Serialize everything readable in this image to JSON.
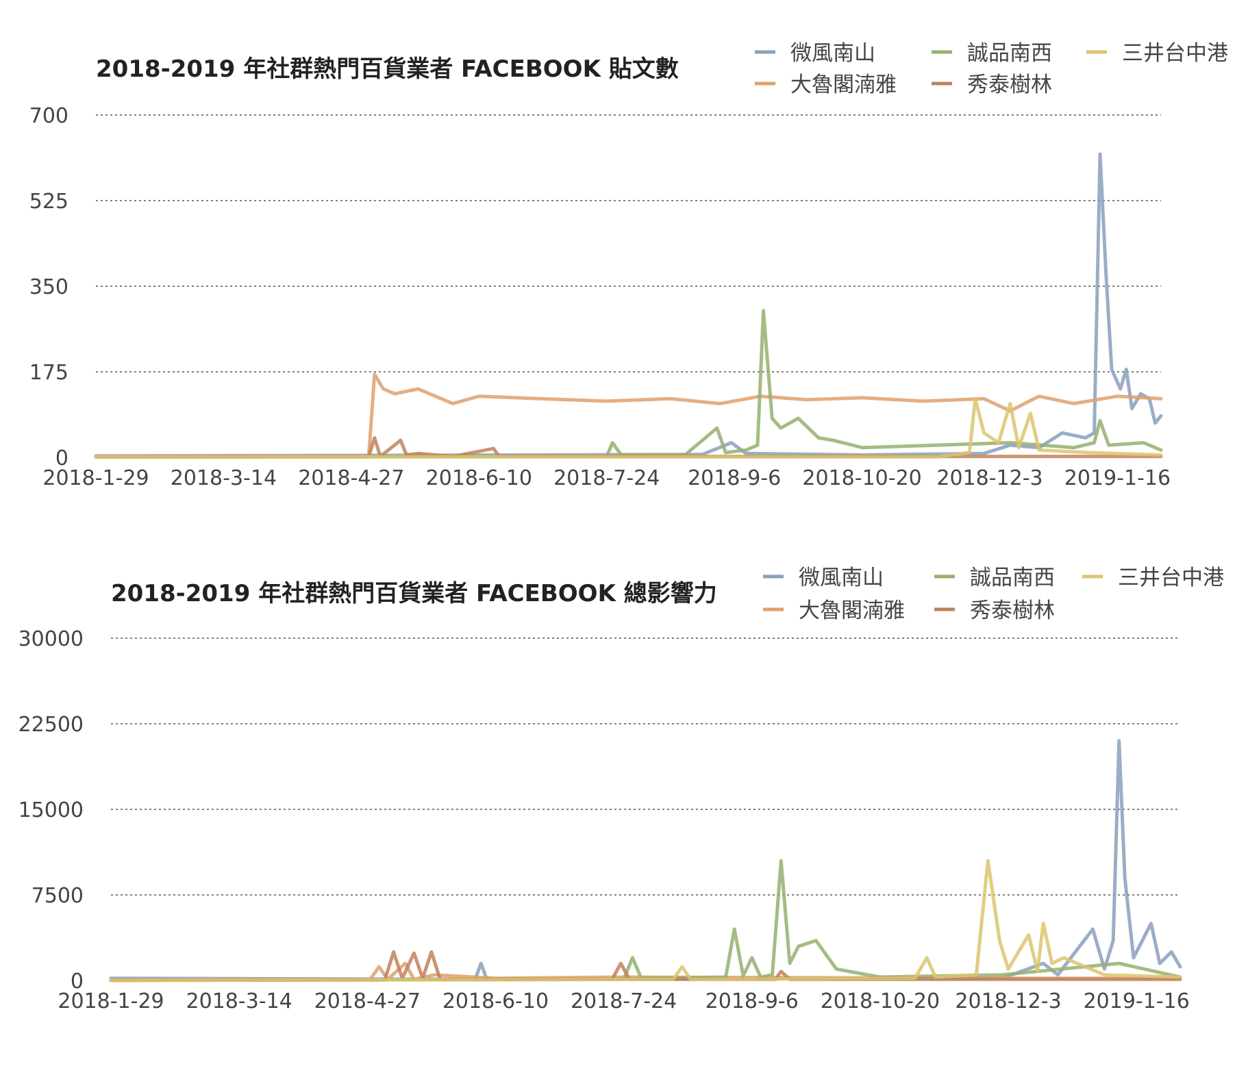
{
  "colors": {
    "wfns": "#8a9fbd",
    "dlg": "#dfa06d",
    "esns": "#94b06e",
    "st": "#c0825c",
    "msth": "#dcc46e"
  },
  "chart_data": [
    {
      "type": "line",
      "title": "2018-2019 年社群熱門百貨業者 FACEBOOK 貼文數",
      "xlabel": "",
      "ylabel": "",
      "ylim": [
        0,
        700
      ],
      "yticks": [
        "0",
        "175",
        "350",
        "525",
        "700"
      ],
      "xticks": [
        "2018-1-29",
        "2018-3-14",
        "2018-4-27",
        "2018-6-10",
        "2018-7-24",
        "2018-9-6",
        "2018-10-20",
        "2018-12-3",
        "2019-1-16"
      ],
      "x_range": [
        "2018-1-29",
        "2019-1-31"
      ],
      "grid": true,
      "legend": "top-right",
      "series": [
        {
          "name": "微風南山",
          "color_key": "wfns",
          "points": [
            [
              "2018-1-29",
              3
            ],
            [
              "2018-5-3",
              4
            ],
            [
              "2018-8-26",
              6
            ],
            [
              "2018-9-5",
              30
            ],
            [
              "2018-9-10",
              8
            ],
            [
              "2018-10-20",
              5
            ],
            [
              "2018-12-1",
              8
            ],
            [
              "2018-12-10",
              25
            ],
            [
              "2018-12-20",
              20
            ],
            [
              "2018-12-28",
              50
            ],
            [
              "2019-1-5",
              40
            ],
            [
              "2019-1-8",
              50
            ],
            [
              "2019-1-10",
              620
            ],
            [
              "2019-1-12",
              380
            ],
            [
              "2019-1-14",
              180
            ],
            [
              "2019-1-17",
              140
            ],
            [
              "2019-1-19",
              180
            ],
            [
              "2019-1-21",
              100
            ],
            [
              "2019-1-24",
              130
            ],
            [
              "2019-1-27",
              120
            ],
            [
              "2019-1-29",
              70
            ],
            [
              "2019-1-31",
              85
            ]
          ]
        },
        {
          "name": "大魯閣湳雅",
          "color_key": "dlg",
          "points": [
            [
              "2018-1-29",
              2
            ],
            [
              "2018-5-3",
              2
            ],
            [
              "2018-5-5",
              170
            ],
            [
              "2018-5-8",
              140
            ],
            [
              "2018-5-12",
              130
            ],
            [
              "2018-5-20",
              140
            ],
            [
              "2018-6-1",
              110
            ],
            [
              "2018-6-10",
              125
            ],
            [
              "2018-7-1",
              120
            ],
            [
              "2018-7-24",
              115
            ],
            [
              "2018-8-15",
              120
            ],
            [
              "2018-9-1",
              110
            ],
            [
              "2018-9-15",
              125
            ],
            [
              "2018-10-1",
              118
            ],
            [
              "2018-10-20",
              122
            ],
            [
              "2018-11-10",
              115
            ],
            [
              "2018-12-1",
              120
            ],
            [
              "2018-12-10",
              95
            ],
            [
              "2018-12-20",
              125
            ],
            [
              "2019-1-1",
              110
            ],
            [
              "2019-1-16",
              125
            ],
            [
              "2019-1-31",
              120
            ]
          ]
        },
        {
          "name": "誠品南西",
          "color_key": "esns",
          "points": [
            [
              "2018-1-29",
              1
            ],
            [
              "2018-7-24",
              2
            ],
            [
              "2018-7-26",
              30
            ],
            [
              "2018-7-29",
              5
            ],
            [
              "2018-8-20",
              5
            ],
            [
              "2018-8-31",
              60
            ],
            [
              "2018-9-3",
              10
            ],
            [
              "2018-9-10",
              15
            ],
            [
              "2018-9-14",
              25
            ],
            [
              "2018-9-16",
              300
            ],
            [
              "2018-9-19",
              80
            ],
            [
              "2018-9-22",
              60
            ],
            [
              "2018-9-28",
              80
            ],
            [
              "2018-10-5",
              40
            ],
            [
              "2018-10-10",
              35
            ],
            [
              "2018-10-20",
              20
            ],
            [
              "2018-11-15",
              25
            ],
            [
              "2018-12-10",
              30
            ],
            [
              "2019-1-1",
              20
            ],
            [
              "2019-1-8",
              30
            ],
            [
              "2019-1-10",
              75
            ],
            [
              "2019-1-13",
              25
            ],
            [
              "2019-1-25",
              30
            ],
            [
              "2019-1-31",
              15
            ]
          ]
        },
        {
          "name": "秀泰樹林",
          "color_key": "st",
          "points": [
            [
              "2018-1-29",
              1
            ],
            [
              "2018-5-3",
              1
            ],
            [
              "2018-5-5",
              40
            ],
            [
              "2018-5-7",
              2
            ],
            [
              "2018-5-14",
              35
            ],
            [
              "2018-5-16",
              5
            ],
            [
              "2018-5-20",
              8
            ],
            [
              "2018-6-1",
              2
            ],
            [
              "2018-6-15",
              18
            ],
            [
              "2018-6-17",
              2
            ],
            [
              "2018-12-1",
              2
            ],
            [
              "2019-1-31",
              2
            ]
          ]
        },
        {
          "name": "三井台中港",
          "color_key": "msth",
          "points": [
            [
              "2018-1-29",
              1
            ],
            [
              "2018-11-15",
              1
            ],
            [
              "2018-11-26",
              10
            ],
            [
              "2018-11-28",
              120
            ],
            [
              "2018-12-1",
              50
            ],
            [
              "2018-12-6",
              30
            ],
            [
              "2018-12-10",
              110
            ],
            [
              "2018-12-13",
              20
            ],
            [
              "2018-12-17",
              90
            ],
            [
              "2018-12-20",
              15
            ],
            [
              "2019-1-5",
              10
            ],
            [
              "2019-1-31",
              5
            ]
          ]
        }
      ]
    },
    {
      "type": "line",
      "title": "2018-2019 年社群熱門百貨業者 FACEBOOK 總影響力",
      "xlabel": "",
      "ylabel": "",
      "ylim": [
        0,
        30000
      ],
      "yticks": [
        "0",
        "7500",
        "15000",
        "22500",
        "30000"
      ],
      "xticks": [
        "2018-1-29",
        "2018-3-14",
        "2018-4-27",
        "2018-6-10",
        "2018-7-24",
        "2018-9-6",
        "2018-10-20",
        "2018-12-3",
        "2019-1-16"
      ],
      "x_range": [
        "2018-1-29",
        "2019-1-31"
      ],
      "grid": true,
      "legend": "top-right",
      "series": [
        {
          "name": "微風南山",
          "color_key": "wfns",
          "points": [
            [
              "2018-1-29",
              200
            ],
            [
              "2018-6-3",
              100
            ],
            [
              "2018-6-5",
              1500
            ],
            [
              "2018-6-7",
              100
            ],
            [
              "2018-12-1",
              200
            ],
            [
              "2018-12-15",
              1500
            ],
            [
              "2018-12-20",
              500
            ],
            [
              "2019-1-1",
              4500
            ],
            [
              "2019-1-5",
              1000
            ],
            [
              "2019-1-8",
              3500
            ],
            [
              "2019-1-10",
              21000
            ],
            [
              "2019-1-12",
              9000
            ],
            [
              "2019-1-15",
              2000
            ],
            [
              "2019-1-18",
              3500
            ],
            [
              "2019-1-21",
              5000
            ],
            [
              "2019-1-24",
              1500
            ],
            [
              "2019-1-28",
              2500
            ],
            [
              "2019-1-31",
              1200
            ]
          ]
        },
        {
          "name": "大魯閣湳雅",
          "color_key": "dlg",
          "points": [
            [
              "2018-1-29",
              50
            ],
            [
              "2018-4-28",
              100
            ],
            [
              "2018-5-1",
              1200
            ],
            [
              "2018-5-4",
              100
            ],
            [
              "2018-5-10",
              1500
            ],
            [
              "2018-5-13",
              100
            ],
            [
              "2018-5-20",
              500
            ],
            [
              "2018-6-10",
              200
            ],
            [
              "2018-7-24",
              300
            ],
            [
              "2018-12-1",
              200
            ],
            [
              "2019-1-31",
              200
            ]
          ]
        },
        {
          "name": "誠品南西",
          "color_key": "esns",
          "points": [
            [
              "2018-1-29",
              20
            ],
            [
              "2018-7-24",
              100
            ],
            [
              "2018-7-27",
              2000
            ],
            [
              "2018-7-30",
              200
            ],
            [
              "2018-8-28",
              300
            ],
            [
              "2018-8-31",
              4500
            ],
            [
              "2018-9-3",
              400
            ],
            [
              "2018-9-6",
              2000
            ],
            [
              "2018-9-9",
              300
            ],
            [
              "2018-9-13",
              500
            ],
            [
              "2018-9-16",
              10500
            ],
            [
              "2018-9-19",
              1500
            ],
            [
              "2018-9-22",
              3000
            ],
            [
              "2018-9-28",
              3500
            ],
            [
              "2018-10-5",
              1000
            ],
            [
              "2018-10-20",
              300
            ],
            [
              "2018-12-1",
              500
            ],
            [
              "2019-1-10",
              1500
            ],
            [
              "2019-1-31",
              300
            ]
          ]
        },
        {
          "name": "秀泰樹林",
          "color_key": "st",
          "points": [
            [
              "2018-1-29",
              10
            ],
            [
              "2018-5-3",
              50
            ],
            [
              "2018-5-6",
              2500
            ],
            [
              "2018-5-9",
              200
            ],
            [
              "2018-5-13",
              2400
            ],
            [
              "2018-5-16",
              200
            ],
            [
              "2018-5-19",
              2500
            ],
            [
              "2018-5-22",
              100
            ],
            [
              "2018-7-20",
              100
            ],
            [
              "2018-7-23",
              1500
            ],
            [
              "2018-7-26",
              100
            ],
            [
              "2018-9-14",
              100
            ],
            [
              "2018-9-16",
              800
            ],
            [
              "2018-9-19",
              100
            ],
            [
              "2019-1-31",
              100
            ]
          ]
        },
        {
          "name": "三井台中港",
          "color_key": "msth",
          "points": [
            [
              "2018-1-29",
              10
            ],
            [
              "2018-8-10",
              100
            ],
            [
              "2018-8-13",
              1200
            ],
            [
              "2018-8-16",
              100
            ],
            [
              "2018-11-1",
              200
            ],
            [
              "2018-11-5",
              2000
            ],
            [
              "2018-11-8",
              300
            ],
            [
              "2018-11-22",
              500
            ],
            [
              "2018-11-26",
              10500
            ],
            [
              "2018-11-30",
              3500
            ],
            [
              "2018-12-3",
              1000
            ],
            [
              "2018-12-10",
              4000
            ],
            [
              "2018-12-13",
              800
            ],
            [
              "2018-12-15",
              5000
            ],
            [
              "2018-12-18",
              1500
            ],
            [
              "2018-12-22",
              2000
            ],
            [
              "2019-1-5",
              500
            ],
            [
              "2019-1-31",
              300
            ]
          ]
        }
      ]
    }
  ]
}
